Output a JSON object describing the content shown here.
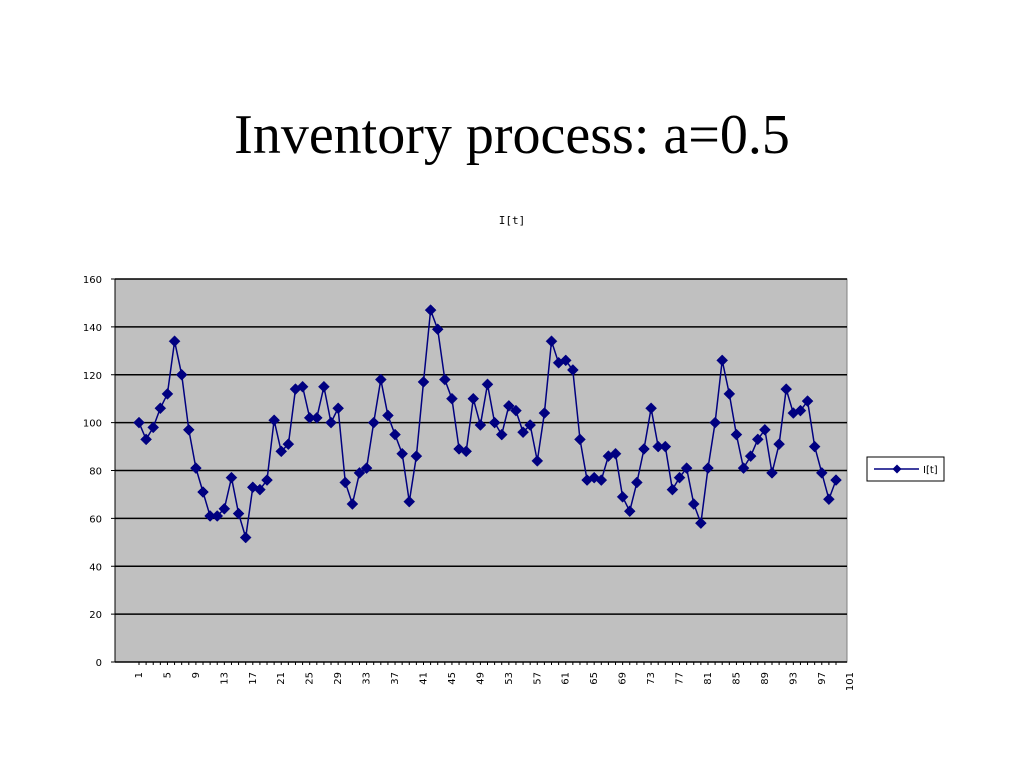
{
  "slide": {
    "title": "Inventory process: a=0.5"
  },
  "chart_data": {
    "type": "line",
    "title": "I[t]",
    "xlabel": "",
    "ylabel": "",
    "ylim": [
      0,
      160
    ],
    "yticks": [
      0,
      20,
      40,
      60,
      80,
      100,
      120,
      140,
      160
    ],
    "grid": true,
    "legend_position": "right",
    "x_tick_labels": [
      "1",
      "5",
      "9",
      "13",
      "17",
      "21",
      "25",
      "29",
      "33",
      "37",
      "41",
      "45",
      "49",
      "53",
      "57",
      "61",
      "65",
      "69",
      "73",
      "77",
      "81",
      "85",
      "89",
      "93",
      "97",
      "101"
    ],
    "x_tick_label_every": 4,
    "colors": {
      "series": "#000080",
      "plot_background": "#c0c0c0",
      "gridline": "#000000"
    },
    "series": [
      {
        "name": "I[t]",
        "marker": "diamond",
        "values": [
          100,
          93,
          98,
          106,
          112,
          134,
          120,
          97,
          81,
          71,
          61,
          61,
          64,
          77,
          62,
          52,
          73,
          72,
          76,
          101,
          88,
          91,
          114,
          115,
          102,
          102,
          115,
          100,
          106,
          75,
          66,
          79,
          81,
          100,
          118,
          103,
          95,
          87,
          67,
          86,
          117,
          147,
          139,
          118,
          110,
          89,
          88,
          110,
          99,
          116,
          100,
          95,
          107,
          105,
          96,
          99,
          84,
          104,
          134,
          125,
          126,
          122,
          93,
          76,
          77,
          76,
          86,
          87,
          69,
          63,
          75,
          89,
          106,
          90,
          90,
          72,
          77,
          81,
          66,
          58,
          81,
          100,
          126,
          112,
          95,
          81,
          86,
          93,
          97,
          79,
          91,
          114,
          104,
          105,
          109,
          90,
          79,
          68,
          76
        ]
      }
    ]
  }
}
